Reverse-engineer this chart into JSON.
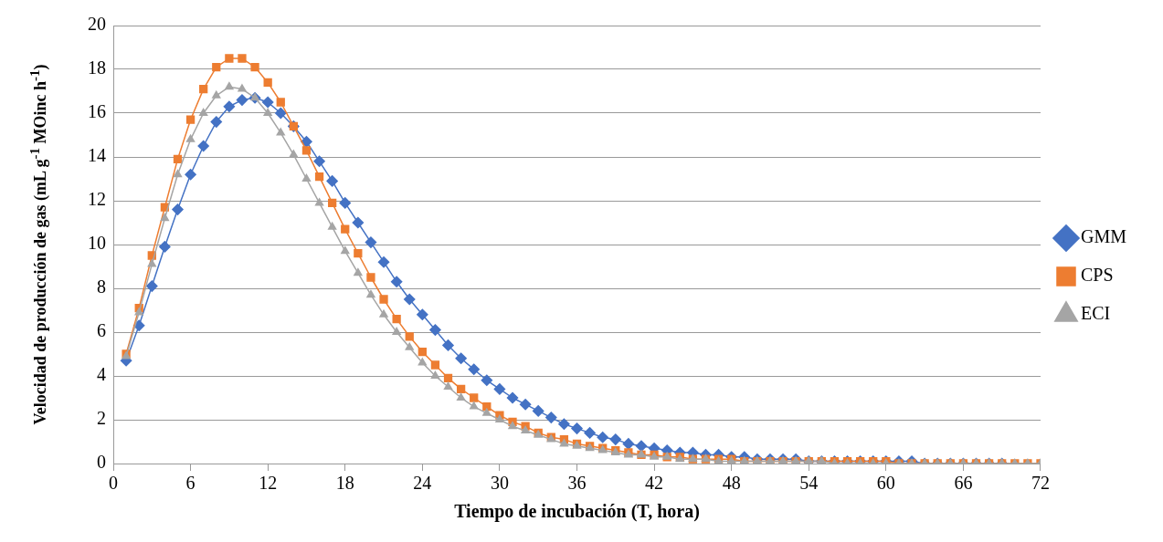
{
  "chart_data": {
    "type": "line",
    "xlabel": "Tiempo de incubación (T, hora)",
    "ylabel": "Velocidad de producción de gas (mL g$^{-1}$ MOinc h$^{-1}$)",
    "x": [
      1,
      2,
      3,
      4,
      5,
      6,
      7,
      8,
      9,
      10,
      11,
      12,
      13,
      14,
      15,
      16,
      17,
      18,
      19,
      20,
      21,
      22,
      23,
      24,
      25,
      26,
      27,
      28,
      29,
      30,
      31,
      32,
      33,
      34,
      35,
      36,
      37,
      38,
      39,
      40,
      41,
      42,
      43,
      44,
      45,
      46,
      47,
      48,
      49,
      50,
      51,
      52,
      53,
      54,
      55,
      56,
      57,
      58,
      59,
      60,
      61,
      62,
      63,
      64,
      65,
      66,
      67,
      68,
      69,
      70,
      71,
      72
    ],
    "xlim": [
      0,
      72
    ],
    "xticks": [
      0,
      6,
      12,
      18,
      24,
      30,
      36,
      42,
      48,
      54,
      60,
      66,
      72
    ],
    "ylim": [
      0,
      20
    ],
    "yticks": [
      0,
      2,
      4,
      6,
      8,
      10,
      12,
      14,
      16,
      18,
      20
    ],
    "grid": "y",
    "legend": "right",
    "line_style": "solid",
    "series": [
      {
        "name": "GMM",
        "color": "#4472c4",
        "marker": "diamond",
        "values": [
          4.7,
          6.3,
          8.1,
          9.9,
          11.6,
          13.2,
          14.5,
          15.6,
          16.3,
          16.6,
          16.7,
          16.5,
          16.0,
          15.4,
          14.7,
          13.8,
          12.9,
          11.9,
          11.0,
          10.1,
          9.2,
          8.3,
          7.5,
          6.8,
          6.1,
          5.4,
          4.8,
          4.3,
          3.8,
          3.4,
          3.0,
          2.7,
          2.4,
          2.1,
          1.8,
          1.6,
          1.4,
          1.2,
          1.1,
          0.9,
          0.8,
          0.7,
          0.6,
          0.5,
          0.5,
          0.4,
          0.4,
          0.3,
          0.3,
          0.2,
          0.2,
          0.2,
          0.2,
          0.1,
          0.1,
          0.1,
          0.1,
          0.1,
          0.1,
          0.1,
          0.1,
          0.1,
          0.0,
          0.0,
          0.0,
          0.0,
          0.0,
          0.0,
          0.0,
          null,
          null,
          null
        ]
      },
      {
        "name": "CPS",
        "color": "#ed7d31",
        "marker": "square",
        "values": [
          5.0,
          7.1,
          9.5,
          11.7,
          13.9,
          15.7,
          17.1,
          18.1,
          18.5,
          18.5,
          18.1,
          17.4,
          16.5,
          15.4,
          14.3,
          13.1,
          11.9,
          10.7,
          9.6,
          8.5,
          7.5,
          6.6,
          5.8,
          5.1,
          4.5,
          3.9,
          3.4,
          3.0,
          2.6,
          2.2,
          1.9,
          1.7,
          1.4,
          1.2,
          1.1,
          0.9,
          0.8,
          0.7,
          0.6,
          0.5,
          0.4,
          0.4,
          0.3,
          0.3,
          0.2,
          0.2,
          0.2,
          0.2,
          0.1,
          0.1,
          0.1,
          0.1,
          0.1,
          0.1,
          0.1,
          0.1,
          0.1,
          0.1,
          0.1,
          0.1,
          0.0,
          0.0,
          0.0,
          0.0,
          0.0,
          0.0,
          0.0,
          0.0,
          0.0,
          0.0,
          0.0,
          0.0
        ]
      },
      {
        "name": "ECI",
        "color": "#a5a5a5",
        "marker": "triangle",
        "values": [
          4.9,
          6.9,
          9.1,
          11.2,
          13.2,
          14.8,
          16.0,
          16.8,
          17.2,
          17.1,
          16.7,
          16.0,
          15.1,
          14.1,
          13.0,
          11.9,
          10.8,
          9.7,
          8.7,
          7.7,
          6.8,
          6.0,
          5.3,
          4.6,
          4.0,
          3.5,
          3.0,
          2.6,
          2.3,
          2.0,
          1.7,
          1.5,
          1.3,
          1.1,
          0.9,
          0.8,
          0.7,
          0.6,
          0.5,
          0.4,
          0.4,
          0.3,
          0.3,
          0.2,
          0.2,
          0.2,
          0.1,
          0.1,
          0.1,
          0.1,
          0.1,
          0.1,
          0.1,
          0.1,
          0.1,
          0.0,
          0.0,
          0.0,
          0.0,
          0.0,
          0.0,
          0.0,
          0.0,
          0.0,
          0.0,
          0.0,
          0.0,
          0.0,
          0.0,
          0.0,
          0.0,
          0.0
        ]
      }
    ]
  }
}
